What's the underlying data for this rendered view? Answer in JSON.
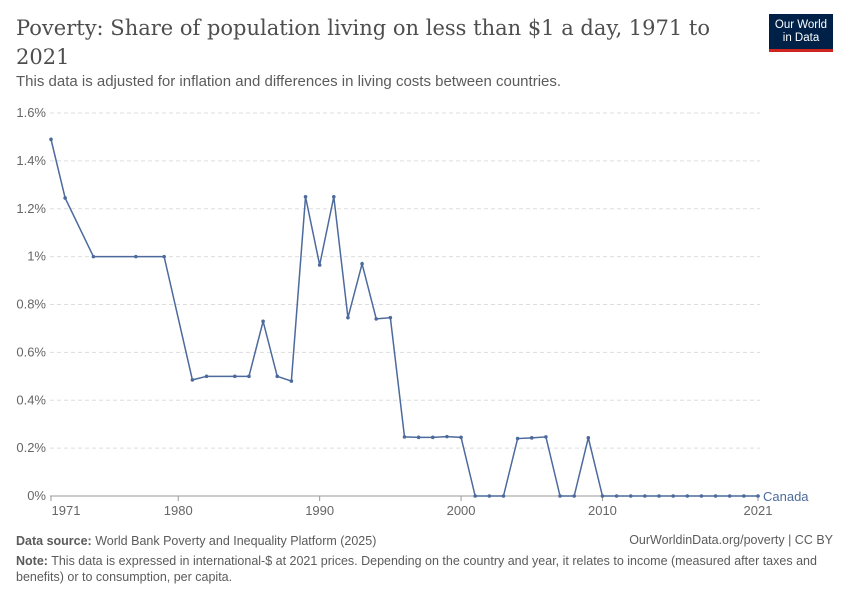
{
  "title": "Poverty: Share of population living on less than $1 a day, 1971 to 2021",
  "subtitle": "This data is adjusted for inflation and differences in living costs between countries.",
  "logo": {
    "line1": "Our World",
    "line2": "in Data"
  },
  "footer": {
    "source_label": "Data source:",
    "source": "World Bank Poverty and Inequality Platform (2025)",
    "url": "OurWorldinData.org/poverty | CC BY",
    "note_label": "Note:",
    "note": "This data is expressed in international-$ at 2021 prices. Depending on the country and year, it relates to income (measured after taxes and benefits) or to consumption, per capita."
  },
  "chart_data": {
    "type": "line",
    "title": "Poverty: Share of population living on less than $1 a day, 1971 to 2021",
    "ylim": [
      0,
      1.6
    ],
    "xlim": [
      1971,
      2021
    ],
    "yticks": [
      "0%",
      "0.2%",
      "0.4%",
      "0.6%",
      "0.8%",
      "1%",
      "1.2%",
      "1.4%",
      "1.6%"
    ],
    "ytick_values": [
      0,
      0.2,
      0.4,
      0.6,
      0.8,
      1,
      1.2,
      1.4,
      1.6
    ],
    "xticks": [
      "1971",
      "1980",
      "1990",
      "2000",
      "2010",
      "2021"
    ],
    "xtick_values": [
      1971,
      1980,
      1990,
      2000,
      2010,
      2021
    ],
    "grid": "horizontal dashed",
    "color": "#4c6a9c",
    "series": [
      {
        "name": "Canada",
        "x": [
          1971,
          1972,
          1974,
          1977,
          1979,
          1981,
          1982,
          1984,
          1985,
          1986,
          1987,
          1988,
          1989,
          1990,
          1991,
          1992,
          1993,
          1994,
          1995,
          1996,
          1997,
          1998,
          1999,
          2000,
          2001,
          2002,
          2003,
          2004,
          2005,
          2006,
          2007,
          2008,
          2009,
          2010,
          2011,
          2012,
          2013,
          2014,
          2015,
          2016,
          2017,
          2018,
          2019,
          2020,
          2021
        ],
        "values": [
          1.49,
          1.245,
          1.0,
          1.0,
          1.0,
          0.485,
          0.5,
          0.5,
          0.5,
          0.73,
          0.5,
          0.48,
          1.25,
          0.965,
          1.25,
          0.745,
          0.97,
          0.74,
          0.745,
          0.247,
          0.245,
          0.245,
          0.248,
          0.245,
          0,
          0,
          0,
          0.24,
          0.243,
          0.247,
          0,
          0,
          0.243,
          0,
          0,
          0,
          0,
          0,
          0,
          0,
          0,
          0,
          0,
          0,
          0
        ]
      }
    ]
  }
}
